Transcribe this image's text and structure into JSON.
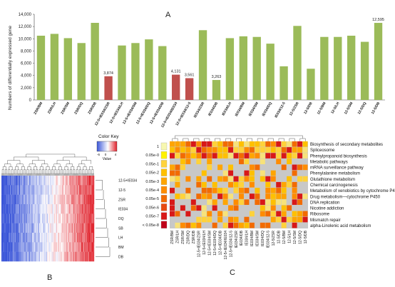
{
  "panels": {
    "a": "A",
    "b": "B",
    "c": "C"
  },
  "chart_data": [
    {
      "type": "bar",
      "panel": "A",
      "ylabel": "Numbers of differentially expressed gene",
      "ylim": [
        0,
        14000
      ],
      "yticks": [
        "0",
        "2,000",
        "4,000",
        "6,000",
        "8,000",
        "10,000",
        "12,000",
        "14,000"
      ],
      "grid": false,
      "colors": {
        "normal": "#9bbb59",
        "highlight": "#c0504d"
      },
      "categories": [
        "ZSR/BM",
        "ZSR/LH",
        "ZSR/SM",
        "ZSR/DQ",
        "ZSR/DB",
        "12-5+IE034/ZSR",
        "12-5+IE034/LH",
        "12-5+IE034/SM",
        "12-5+IE034/DQ",
        "12-5+IE034/DB",
        "12-5+IE034/IE034",
        "12-5+IE034/12-5",
        "IE034/ZSR",
        "IE034/DB",
        "IE034/LH",
        "IE034/BM",
        "IE034/SM",
        "IE034/DQ",
        "IE034/12-5",
        "12-5/ZSR",
        "12-5/DB",
        "12-5/BM",
        "12-5/LH",
        "12-5/SM",
        "12-5/DQ",
        "12-5/DB"
      ],
      "values": [
        10500,
        10800,
        10100,
        9300,
        12600,
        3874,
        8900,
        9300,
        9900,
        8800,
        4131,
        3561,
        11400,
        3263,
        10100,
        10400,
        10300,
        9200,
        5500,
        12100,
        5100,
        10300,
        10300,
        10500,
        9500,
        12595
      ],
      "highlight": [
        false,
        false,
        false,
        false,
        false,
        true,
        false,
        false,
        false,
        false,
        true,
        true,
        false,
        false,
        false,
        false,
        false,
        false,
        false,
        false,
        false,
        false,
        false,
        false,
        false,
        false
      ],
      "value_labels": [
        "",
        "",
        "",
        "",
        "",
        "3,874",
        "",
        "",
        "",
        "",
        "4,131",
        "3,561",
        "",
        "3,263",
        "",
        "",
        "",
        "",
        "",
        "",
        "",
        "",
        "",
        "",
        "",
        "12,595"
      ]
    },
    {
      "type": "heatmap",
      "panel": "B",
      "legend_title": "Color Key",
      "legend_ticks": [
        "-6",
        "0",
        "4"
      ],
      "legend_axis_label": "Value",
      "colors": {
        "low": "#3a55d8",
        "mid": "#ffffff",
        "high": "#e0202a"
      },
      "row_labels": [
        "12-5+IE034",
        "12-5",
        "ZSR",
        "IE034",
        "DQ",
        "SB",
        "LH",
        "BM",
        "DB"
      ]
    },
    {
      "type": "heatmap",
      "panel": "C",
      "row_labels": [
        "Biosynthesis of secondary metabolites",
        "Spliceosome",
        "Phenylpropanoid biosynthesis",
        "Metabolic pathways",
        "mRNA surveillance pathway",
        "Phenylalanine metabolism",
        "Glutathione metabolism",
        "Chemical carcinogenesis",
        "Metabolism of xenobiotics by cytochrome P450",
        "Drug metabolism—cytochrome P450",
        "DNA replication",
        "Nicotine addiction",
        "Ribosome",
        "Mismatch repair",
        "alpha-Linolenic acid metabolism"
      ],
      "col_labels": [
        "ZSR/BM",
        "ZSR/LH",
        "ZSR/SM",
        "ZSR/DQ",
        "ZSR/DB",
        "12-5+IE034/ZSR",
        "12-5+IE034/LH",
        "12-5+IE034/SM",
        "12-5+IE034/DQ",
        "12-5+IE034/DB",
        "12-5+IE034/IE034",
        "12-5+IE034/12-5",
        "IE034/ZSR",
        "IE034/DB",
        "IE034/LH",
        "IE034/BM",
        "IE034/SM",
        "IE034/DQ",
        "IE034/12-5",
        "12-5/ZSR",
        "12-5/DB",
        "12-5/BM",
        "12-5/LH",
        "12-5/SM",
        "12-5/DQ",
        "12-5/DB"
      ],
      "legend_labels": [
        "1",
        "0.05e-0",
        "0.05e-1",
        "0.05e-2",
        "0.05e-3",
        "0.05e-4",
        "0.05e-5",
        "0.05e-6",
        "0.05e-7",
        "< 0.05e-8"
      ],
      "legend_colors": [
        "#f7f7b0",
        "#fff200",
        "#ffd33d",
        "#ffc000",
        "#ffa500",
        "#ff8c00",
        "#f26b00",
        "#e84a10",
        "#d81818",
        "#c0001a"
      ]
    }
  ]
}
